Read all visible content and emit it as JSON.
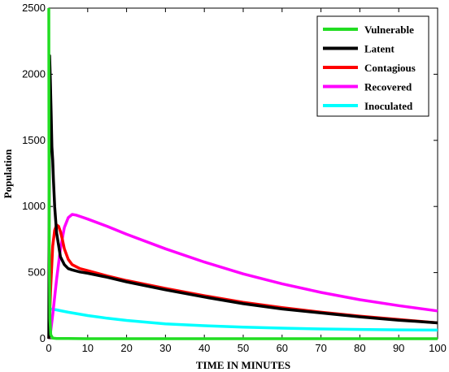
{
  "chart_data": {
    "type": "line",
    "title": "",
    "xlabel": "TIME IN MINUTES",
    "ylabel": "Population",
    "xlim": [
      0,
      100
    ],
    "ylim": [
      0,
      2500
    ],
    "xticks": [
      0,
      10,
      20,
      30,
      40,
      50,
      60,
      70,
      80,
      90,
      100
    ],
    "yticks": [
      0,
      500,
      1000,
      1500,
      2000,
      2500
    ],
    "grid": false,
    "legend_position": "top-right",
    "series": [
      {
        "name": "Vulnerable",
        "color": "#22dd22",
        "x": [
          0,
          0.05,
          0.1,
          0.3,
          0.5,
          1,
          2,
          5,
          10,
          50,
          100
        ],
        "y": [
          2500,
          1500,
          700,
          150,
          30,
          5,
          2,
          1,
          0,
          0,
          0
        ]
      },
      {
        "name": "Latent",
        "color": "#000000",
        "x": [
          0,
          0.2,
          0.4,
          0.6,
          0.8,
          1.0,
          1.2,
          1.5,
          2,
          3,
          4,
          5,
          6,
          8,
          10,
          15,
          20,
          30,
          40,
          50,
          60,
          70,
          80,
          90,
          100
        ],
        "y": [
          0,
          2140,
          1950,
          1700,
          1450,
          1350,
          1200,
          1000,
          800,
          620,
          560,
          530,
          520,
          505,
          495,
          465,
          430,
          370,
          315,
          265,
          225,
          195,
          165,
          140,
          120
        ]
      },
      {
        "name": "Contagious",
        "color": "#ff0000",
        "x": [
          0,
          0.5,
          1,
          1.5,
          2,
          2.5,
          3,
          3.5,
          4,
          5,
          6,
          8,
          10,
          15,
          20,
          30,
          40,
          50,
          60,
          70,
          80,
          90,
          100
        ],
        "y": [
          0,
          400,
          700,
          820,
          860,
          850,
          810,
          750,
          680,
          600,
          560,
          530,
          515,
          475,
          440,
          380,
          325,
          275,
          235,
          200,
          170,
          145,
          120
        ]
      },
      {
        "name": "Recovered",
        "color": "#ff00ff",
        "x": [
          0,
          0.5,
          1,
          2,
          3,
          4,
          5,
          6,
          7,
          8,
          10,
          15,
          20,
          30,
          40,
          50,
          60,
          70,
          80,
          90,
          100
        ],
        "y": [
          0,
          60,
          180,
          450,
          680,
          840,
          915,
          940,
          935,
          925,
          905,
          850,
          790,
          680,
          580,
          490,
          415,
          350,
          295,
          250,
          210
        ]
      },
      {
        "name": "Inoculated",
        "color": "#00ffff",
        "x": [
          0,
          0.5,
          1,
          2,
          3,
          5,
          10,
          15,
          20,
          30,
          40,
          50,
          60,
          70,
          80,
          90,
          100
        ],
        "y": [
          210,
          225,
          222,
          218,
          212,
          200,
          175,
          155,
          138,
          112,
          98,
          88,
          80,
          74,
          70,
          67,
          65
        ]
      }
    ]
  }
}
